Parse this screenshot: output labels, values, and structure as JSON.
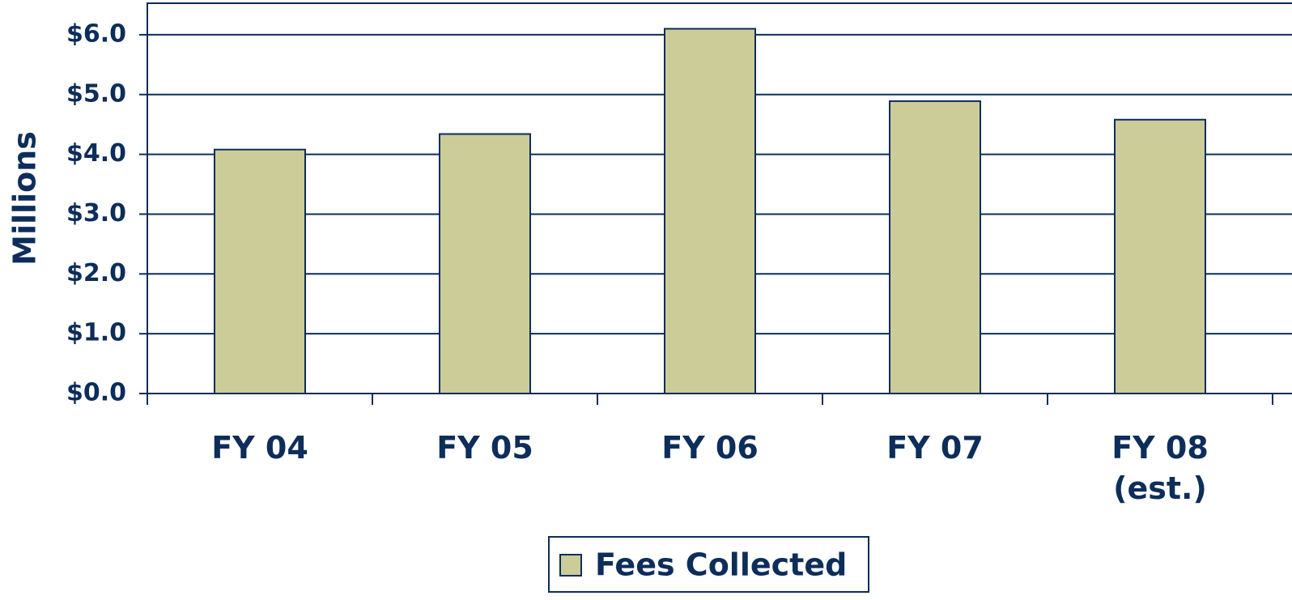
{
  "chart_data": {
    "type": "bar",
    "y_label": "Millions",
    "categories": [
      "FY 04",
      "FY 05",
      "FY 06",
      "FY 07",
      "FY 08 (est.)"
    ],
    "series": [
      {
        "name": "Fees Collected",
        "color": "#cccc99",
        "values": [
          4.08,
          4.34,
          6.1,
          4.89,
          4.58
        ]
      }
    ],
    "ylim": [
      0,
      6.5
    ],
    "yticks": [
      {
        "value": 0,
        "label": "$0.0"
      },
      {
        "value": 1,
        "label": "$1.0"
      },
      {
        "value": 2,
        "label": "$2.0"
      },
      {
        "value": 3,
        "label": "$3.0"
      },
      {
        "value": 4,
        "label": "$4.0"
      },
      {
        "value": 5,
        "label": "$5.0"
      },
      {
        "value": 6,
        "label": "$6.0"
      }
    ],
    "grid": true,
    "legend": "bottom"
  }
}
